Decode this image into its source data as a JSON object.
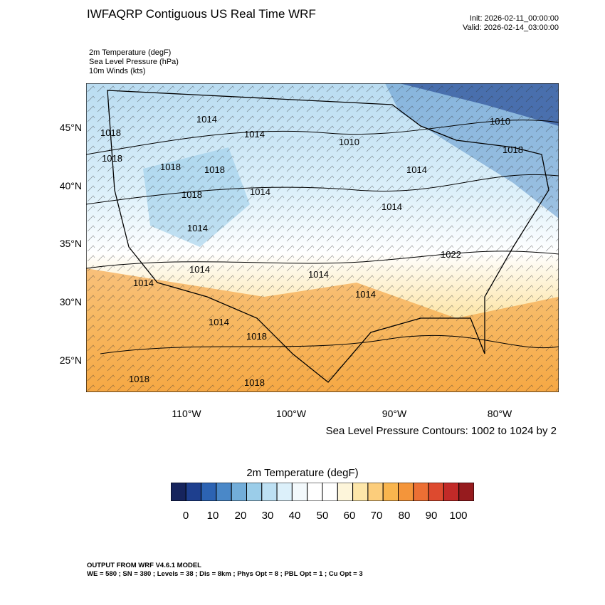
{
  "header": {
    "title": "IWFAQRP Contiguous US Real Time WRF",
    "init": "Init: 2026-02-11_00:00:00",
    "valid": "Valid: 2026-02-14_03:00:00"
  },
  "fields": [
    "2m Temperature   (degF)",
    "Sea Level Pressure   (hPa)",
    "10m Winds   (kts)"
  ],
  "map": {
    "lat_labels": [
      "45°N",
      "40°N",
      "35°N",
      "30°N",
      "25°N"
    ],
    "lon_labels": [
      "110°W",
      "100°W",
      "90°W",
      "80°W"
    ],
    "isobar_labels": [
      "1014",
      "1014",
      "1018",
      "1018",
      "1018",
      "1018",
      "1014",
      "1014",
      "1014",
      "1014",
      "1014",
      "1014",
      "1014",
      "1018",
      "1018",
      "1010",
      "1014",
      "1014",
      "1010",
      "1018",
      "1018",
      "1022",
      "1018"
    ],
    "caption": "Sea Level Pressure Contours: 1002 to 1024 by 2"
  },
  "colorbar": {
    "title": "2m Temperature  (degF)",
    "labels": [
      "0",
      "10",
      "20",
      "30",
      "40",
      "50",
      "60",
      "70",
      "80",
      "90",
      "100"
    ],
    "colors": [
      "#16245d",
      "#1e3f8e",
      "#2c63b3",
      "#4a88c8",
      "#72add9",
      "#9bcde9",
      "#bde0f3",
      "#dcf0fa",
      "#f3f9fc",
      "#ffffff",
      "#ffffff",
      "#fdf5da",
      "#fde6a9",
      "#fccd7b",
      "#f9b54e",
      "#f4953a",
      "#ec6f34",
      "#dd4a2f",
      "#c22a28",
      "#961b1e"
    ]
  },
  "footer": {
    "line1": "OUTPUT FROM WRF V4.6.1 MODEL",
    "line2": "WE = 580 ; SN = 380 ; Levels = 38 ; Dis = 8km ; Phys Opt = 8 ; PBL Opt = 1 ; Cu Opt = 3"
  }
}
